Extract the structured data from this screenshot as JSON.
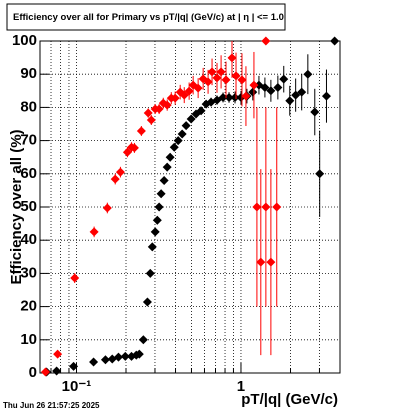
{
  "chart_data": {
    "type": "scatter",
    "title": "Efficiency over all for Primary vs pT/|q| (GeV/c) at |  η  | <= 1.0",
    "x_label": "pT/|q| (GeV/c)",
    "y_label": "Efficiency over all (%)",
    "footer": "Thu Jun 26 21:57:25 2025",
    "xlog": true,
    "grid": true,
    "xlim": [
      0.06,
      4
    ],
    "ylim": [
      0,
      100
    ],
    "xticks": [
      {
        "value": 0.1,
        "label": "10⁻¹"
      },
      1
    ],
    "xminorticks": [
      0.07,
      0.08,
      0.09,
      0.2,
      0.3,
      0.4,
      0.5,
      0.6,
      0.7,
      0.8,
      0.9,
      2,
      3
    ],
    "yticks": [
      0,
      10,
      20,
      30,
      40,
      50,
      60,
      70,
      80,
      90,
      100
    ],
    "series": [
      {
        "color": "#000000",
        "x": [
          0.0658,
          0.0757,
          0.096,
          0.127,
          0.15,
          0.165,
          0.18,
          0.198,
          0.216,
          0.231,
          0.241,
          0.255,
          0.27,
          0.281,
          0.289,
          0.301,
          0.31,
          0.318,
          0.327,
          0.341,
          0.356,
          0.371,
          0.393,
          0.415,
          0.439,
          0.464,
          0.498,
          0.533,
          0.572,
          0.614,
          0.658,
          0.715,
          0.778,
          0.846,
          0.92,
          1.0,
          1.087,
          1.18,
          1.286,
          1.398,
          1.52,
          1.676,
          1.82,
          1.98,
          2.15,
          2.34,
          2.55,
          2.81,
          3.01,
          3.31,
          3.71
        ],
        "values": [
          0.3,
          0.6,
          2,
          3.3,
          4,
          4.2,
          4.8,
          5,
          5,
          5.4,
          5.7,
          10,
          21.4,
          30,
          38,
          42.5,
          46,
          50,
          54,
          58,
          62,
          65,
          68,
          70,
          72,
          74.5,
          76.5,
          78,
          79,
          81,
          81.6,
          82.2,
          83,
          83,
          83,
          83,
          83.4,
          84.6,
          86.7,
          86,
          85,
          86,
          88.5,
          82,
          83.7,
          84.6,
          90,
          78.6,
          60,
          83.4,
          100
        ],
        "errors": [
          0.3,
          0.4,
          0.6,
          0.6,
          0.6,
          0.6,
          0.6,
          0.6,
          0.6,
          0.7,
          0.7,
          0.9,
          1.1,
          1.2,
          1.2,
          1.2,
          1.2,
          1.2,
          1.2,
          1.2,
          1.2,
          1.2,
          1.1,
          1.1,
          1.1,
          1.1,
          1.1,
          1.1,
          1.2,
          1.2,
          1.3,
          1.4,
          1.5,
          1.6,
          1.8,
          2,
          2.2,
          2.5,
          2.8,
          3,
          3.3,
          3.6,
          4,
          4.5,
          5,
          5.5,
          6,
          7,
          13,
          8,
          0
        ]
      },
      {
        "color": "#ff0000",
        "x": [
          0.0648,
          0.0768,
          0.0975,
          0.128,
          0.154,
          0.172,
          0.185,
          0.204,
          0.216,
          0.225,
          0.248,
          0.273,
          0.285,
          0.301,
          0.318,
          0.337,
          0.356,
          0.377,
          0.398,
          0.427,
          0.452,
          0.484,
          0.512,
          0.549,
          0.589,
          0.631,
          0.667,
          0.715,
          0.757,
          0.811,
          0.882,
          0.933,
          1.014,
          1.072,
          1.199,
          1.25,
          1.32,
          1.417,
          1.417,
          1.52,
          1.65
        ],
        "values": [
          0.3,
          5.7,
          28.6,
          42.5,
          49.7,
          58.4,
          60.5,
          66.5,
          68,
          67.8,
          72.9,
          78.3,
          76.2,
          79.5,
          79.5,
          81.3,
          80.7,
          82.8,
          82.8,
          84.6,
          83.7,
          84.9,
          86.7,
          85.8,
          88.6,
          87.7,
          90.7,
          88.9,
          90.7,
          88.3,
          94.9,
          89.5,
          88.3,
          83.4,
          86.7,
          50,
          33.4,
          100,
          50,
          33.4,
          50
        ],
        "errors": [
          0.3,
          1,
          1.5,
          1.6,
          1.6,
          1.6,
          1.6,
          1.5,
          1.5,
          1.5,
          1.5,
          1.4,
          1.5,
          1.5,
          1.5,
          1.6,
          1.7,
          1.8,
          2,
          2.2,
          2.4,
          2.6,
          2.8,
          3,
          3.3,
          3.6,
          4,
          4.5,
          5,
          5.5,
          6,
          7,
          8,
          9,
          10,
          30,
          28,
          0,
          30,
          28,
          30
        ]
      }
    ]
  }
}
